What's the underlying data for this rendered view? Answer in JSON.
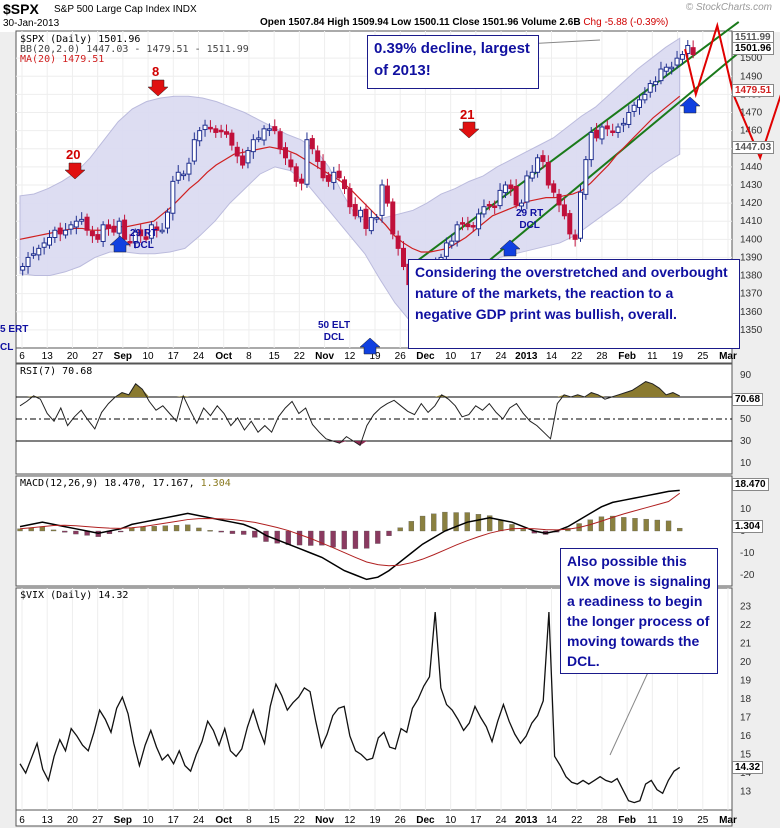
{
  "header": {
    "symbol": "$SPX",
    "name": "S&P 500 Large Cap Index",
    "exchange": "INDX",
    "date": "30-Jan-2013",
    "ohlc_text": "Open 1507.84  High 1509.94  Low 1500.11  Close 1501.96  Volume 2.6B",
    "change_text": "Chg -5.88 (-0.39%)",
    "brand": "© StockCharts.com"
  },
  "legends": {
    "price_symbol": "$SPX (Daily) 1501.96",
    "price_bb": "BB(20,2.0) 1447.03 - 1479.51 - 1511.99",
    "price_ma": "MA(20) 1479.51",
    "rsi": "RSI(7) 70.68",
    "macd_main": "MACD(12,26,9) 18.470, 17.167,",
    "macd_hist": "1.304",
    "vix": "$VIX (Daily) 14.32"
  },
  "callouts": {
    "top": "0.39% decline, largest of 2013!",
    "middle": "Considering the overstretched and overbought nature of the markets, the reaction to a negative GDP print was bullish, overall.",
    "bottom": "Also possible this VIX move is signaling a readiness to begin the longer process of moving towards the DCL."
  },
  "markers": {
    "red_20": "20",
    "red_8": "8",
    "red_21": "21",
    "blue_29a": "29 RT\nDCL",
    "blue_50": "50 ELT\nDCL",
    "blue_29b": "29 RT\nDCL",
    "left_edge_a": "5 ERT",
    "left_edge_b": "CL"
  },
  "price_boxes": {
    "upper_bb": "1511.99",
    "close": "1501.96",
    "ma": "1479.51",
    "lower_bb": "1447.03",
    "rsi": "70.68",
    "macd": "18.470",
    "macd_hist": "1.304",
    "vix": "14.32"
  },
  "colors": {
    "up_candle": "#1f2f8f",
    "down_candle": "#c0103a",
    "bb_fill": "#dcdcf2",
    "ma": "#d02020",
    "channel": "#1a7a1a",
    "projection": "#e00000",
    "callout_text": "#1010a0"
  },
  "chart_data": [
    {
      "type": "line",
      "panel": "price",
      "title": "$SPX S&P 500 Large Cap Index",
      "ylim": [
        1340,
        1515
      ],
      "yticks": [
        1350,
        1360,
        1370,
        1380,
        1390,
        1400,
        1410,
        1420,
        1430,
        1440,
        1450,
        1460,
        1470,
        1480,
        1490,
        1500
      ],
      "x_tick_labels": [
        "6",
        "13",
        "20",
        "27",
        "Sep",
        "10",
        "17",
        "24",
        "Oct",
        "8",
        "15",
        "22",
        "Nov",
        "12",
        "19",
        "26",
        "Dec",
        "10",
        "17",
        "24",
        "2013",
        "14",
        "22",
        "28",
        "Feb",
        "11",
        "19",
        "25",
        "Mar"
      ],
      "series": [
        {
          "name": "$SPX (Daily)",
          "values": [
            1385,
            1390,
            1392,
            1395,
            1398,
            1401,
            1405,
            1403,
            1405,
            1408,
            1410,
            1411,
            1405,
            1402,
            1400,
            1408,
            1406,
            1404,
            1410,
            1400,
            1398,
            1404,
            1402,
            1400,
            1408,
            1405,
            1405,
            1415,
            1432,
            1437,
            1436,
            1442,
            1455,
            1460,
            1463,
            1461,
            1459,
            1460,
            1458,
            1452,
            1446,
            1441,
            1449,
            1455,
            1456,
            1461,
            1461,
            1460,
            1450,
            1445,
            1440,
            1432,
            1431,
            1455,
            1450,
            1443,
            1434,
            1432,
            1437,
            1434,
            1428,
            1418,
            1413,
            1416,
            1406,
            1412,
            1412,
            1430,
            1420,
            1403,
            1395,
            1385,
            1375,
            1360,
            1353,
            1355,
            1377,
            1386,
            1390,
            1398,
            1399,
            1408,
            1409,
            1407,
            1407,
            1414,
            1418,
            1419,
            1418,
            1427,
            1430,
            1428,
            1419,
            1420,
            1435,
            1437,
            1445,
            1443,
            1430,
            1426,
            1419,
            1413,
            1403,
            1400,
            1426,
            1444,
            1459,
            1456,
            1462,
            1461,
            1459,
            1462,
            1464,
            1470,
            1474,
            1477,
            1480,
            1486,
            1487,
            1494,
            1495,
            1495,
            1500,
            1502,
            1507,
            1502
          ]
        },
        {
          "name": "MA(20)",
          "values": [
            1400,
            1401,
            1402,
            1403,
            1404,
            1405,
            1406,
            1406,
            1405,
            1405,
            1406,
            1407,
            1407,
            1408,
            1409,
            1410,
            1414,
            1418,
            1423,
            1428,
            1432,
            1437,
            1441,
            1444,
            1447,
            1448,
            1449,
            1450,
            1451,
            1450,
            1449,
            1447,
            1444,
            1441,
            1438,
            1435,
            1432,
            1428,
            1423,
            1418,
            1413,
            1408,
            1402,
            1398,
            1395,
            1393,
            1393,
            1394,
            1395,
            1398,
            1401,
            1405,
            1409,
            1413,
            1415,
            1417,
            1419,
            1421,
            1422,
            1423,
            1423,
            1424,
            1425,
            1427,
            1431,
            1436,
            1441,
            1447,
            1452,
            1457,
            1462,
            1467,
            1471,
            1475,
            1479
          ]
        },
        {
          "name": "BB upper",
          "values": [
            1424,
            1425,
            1428,
            1432,
            1437,
            1445,
            1455,
            1465,
            1472,
            1476,
            1478,
            1479,
            1479,
            1478,
            1476,
            1473,
            1470,
            1466,
            1462,
            1458,
            1455,
            1450,
            1440,
            1425,
            1412,
            1410,
            1412,
            1414,
            1416,
            1420,
            1425,
            1428,
            1432,
            1435,
            1440,
            1444,
            1448,
            1452,
            1456,
            1462,
            1468,
            1473,
            1480,
            1487,
            1494,
            1500,
            1506,
            1511
          ]
        },
        {
          "name": "BB lower",
          "values": [
            1381,
            1380,
            1380,
            1382,
            1385,
            1390,
            1393,
            1393,
            1392,
            1392,
            1393,
            1395,
            1402,
            1410,
            1420,
            1428,
            1436,
            1440,
            1438,
            1432,
            1422,
            1412,
            1402,
            1392,
            1378,
            1365,
            1355,
            1352,
            1356,
            1366,
            1376,
            1384,
            1390,
            1392,
            1394,
            1396,
            1398,
            1402,
            1408,
            1414,
            1420,
            1428,
            1436,
            1442,
            1447
          ]
        }
      ],
      "annotations": [
        "20",
        "8",
        "21",
        "29 RT DCL",
        "50 ELT DCL",
        "29 RT DCL"
      ]
    },
    {
      "type": "line",
      "panel": "rsi",
      "ylim": [
        0,
        100
      ],
      "yticks": [
        10,
        30,
        50,
        70,
        90
      ],
      "series": [
        {
          "name": "RSI(7)",
          "values": [
            62,
            66,
            71,
            68,
            55,
            48,
            60,
            44,
            52,
            58,
            49,
            41,
            56,
            64,
            70,
            74,
            72,
            82,
            77,
            66,
            58,
            62,
            55,
            48,
            71,
            58,
            46,
            60,
            53,
            62,
            55,
            44,
            51,
            40,
            48,
            38,
            44,
            38,
            52,
            60,
            66,
            55,
            60,
            45,
            38,
            32,
            30,
            28,
            34,
            30,
            26,
            44,
            54,
            60,
            64,
            67,
            62,
            57,
            54,
            64,
            56,
            62,
            72,
            68,
            62,
            52,
            54,
            62,
            58,
            64,
            56,
            50,
            60,
            64,
            55,
            48,
            44,
            38,
            32,
            64,
            72,
            70,
            72,
            70,
            74,
            72,
            68,
            70,
            72,
            74,
            76,
            80,
            84,
            82,
            78,
            72,
            74,
            71
          ]
        }
      ]
    },
    {
      "type": "line",
      "panel": "macd",
      "ylim": [
        -25,
        25
      ],
      "yticks": [
        -20,
        -10,
        0,
        10
      ],
      "series": [
        {
          "name": "MACD",
          "values": [
            2,
            3,
            4,
            3,
            2,
            1,
            0,
            -1,
            0,
            1,
            3,
            4,
            5,
            6,
            7,
            8,
            7,
            6,
            5,
            4,
            3,
            1,
            -2,
            -4,
            -6,
            -8,
            -10,
            -12,
            -15,
            -18,
            -20,
            -22,
            -21,
            -18,
            -14,
            -10,
            -6,
            -3,
            0,
            2,
            4,
            5,
            6,
            5,
            4,
            2,
            0,
            -1,
            0,
            2,
            5,
            8,
            11,
            13,
            14,
            15,
            16,
            17,
            18,
            18.47
          ]
        },
        {
          "name": "Signal",
          "values": [
            1,
            1.5,
            2,
            2.5,
            2.6,
            2.4,
            2,
            1.6,
            1.3,
            1.2,
            1.5,
            2,
            2.8,
            3.6,
            4.4,
            5.2,
            5.6,
            5.7,
            5.5,
            5.2,
            4.6,
            3.9,
            2.8,
            1.6,
            0.2,
            -1.6,
            -3.4,
            -5.5,
            -7.6,
            -9.8,
            -12,
            -14.1,
            -15.3,
            -15.8,
            -15.5,
            -14.4,
            -12.8,
            -10.8,
            -8.6,
            -6.4,
            -4.4,
            -2.6,
            -1,
            0.2,
            1,
            1.2,
            1,
            0.6,
            0.5,
            0.8,
            1.6,
            2.9,
            4.5,
            6.2,
            7.8,
            9.2,
            10.6,
            12,
            13.4,
            17.167
          ]
        },
        {
          "name": "Histogram",
          "values": [
            1,
            1.5,
            2,
            0.5,
            -0.6,
            -1.4,
            -2,
            -2.6,
            -1.3,
            -0.2,
            1.5,
            2,
            2.2,
            2.4,
            2.6,
            2.8,
            1.4,
            0.3,
            -0.5,
            -1.2,
            -1.6,
            -2.9,
            -4.8,
            -5.6,
            -6.2,
            -6.4,
            -6.6,
            -6.5,
            -7.4,
            -8.2,
            -8,
            -7.9,
            -5.7,
            -2.2,
            1.5,
            4.4,
            6.8,
            7.8,
            8.6,
            8.4,
            8.4,
            7.6,
            7,
            4.8,
            3,
            0.8,
            -1,
            -1.6,
            -0.5,
            1.2,
            3.4,
            5.1,
            6.5,
            6.8,
            6.2,
            5.8,
            5.4,
            5,
            4.6,
            1.304
          ]
        }
      ]
    },
    {
      "type": "line",
      "panel": "vix",
      "ylim": [
        12,
        24
      ],
      "yticks": [
        13,
        14,
        15,
        16,
        17,
        18,
        19,
        20,
        21,
        22,
        23
      ],
      "series": [
        {
          "name": "$VIX (Daily)",
          "values": [
            14.5,
            14,
            14.8,
            15.6,
            14.2,
            13.6,
            14.9,
            15.8,
            15.2,
            16.4,
            16,
            15.5,
            15.2,
            16.2,
            17.4,
            16.9,
            16.2,
            17.5,
            18.1,
            17.2,
            15.6,
            14.4,
            15.5,
            16.3,
            15.4,
            14.7,
            15,
            14.5,
            15.2,
            14.4,
            14.1,
            15,
            15.7,
            16.8,
            16.3,
            15.5,
            16.4,
            15.2,
            14.9,
            15.3,
            16.5,
            17.4,
            16.4,
            15.6,
            17.6,
            18.8,
            18.2,
            17.4,
            17.8,
            18.1,
            18.6,
            18.4,
            16.8,
            15.4,
            16.1,
            17.1,
            17.5,
            17.6,
            16,
            15.2,
            15,
            14.7,
            14.8,
            15.9,
            16.2,
            15.4,
            15.3,
            16.4,
            16.2,
            17.5,
            18,
            18.7,
            19.2,
            22.7,
            18.6,
            17.7,
            17.4,
            16.9,
            16.3,
            16.7,
            17.6,
            17,
            16.5,
            15.7,
            16.8,
            17.7,
            16.8,
            16.1,
            15.6,
            16,
            16.7,
            17.1,
            17.9,
            22.7,
            14.9,
            14.4,
            13.8,
            13.5,
            13.4,
            13.6,
            13.4,
            13.6,
            13.8,
            13.6,
            13.5,
            13.7,
            13.1,
            12.5,
            12.4,
            12.5,
            13.4,
            13.6,
            13.1,
            12.9,
            13.6,
            14.1,
            14.3
          ]
        }
      ]
    }
  ]
}
